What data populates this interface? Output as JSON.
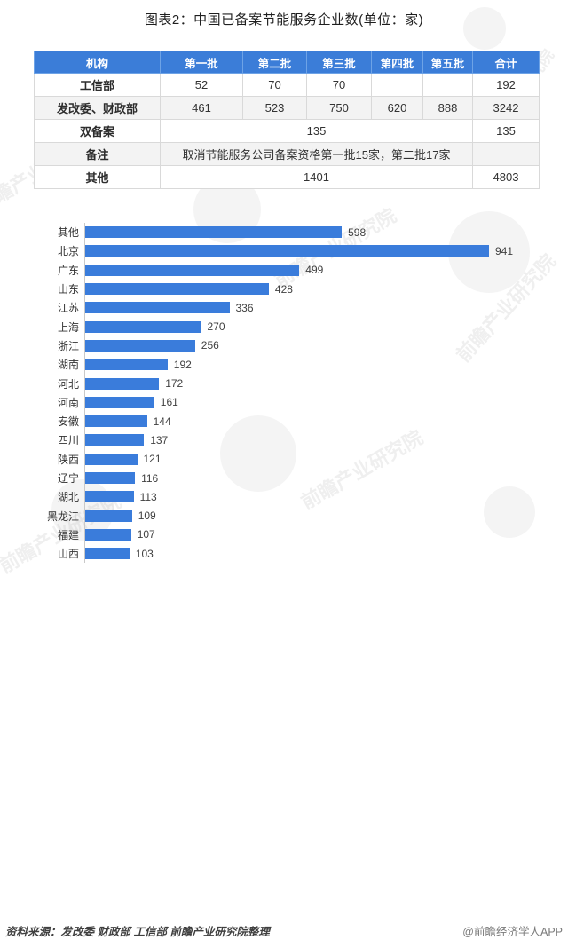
{
  "title": "图表2：中国已备案节能服务企业数(单位：家)",
  "colors": {
    "table_header_blue": "#3b7dd8",
    "bar_blue": "#3a7cdb",
    "axis_gray": "#c9c9c9"
  },
  "chart_data": [
    {
      "type": "table",
      "headers": [
        "机构",
        "第一批",
        "第二批",
        "第三批",
        "第四批",
        "第五批",
        "合计"
      ],
      "rows": [
        {
          "label": "工信部",
          "cells": [
            "52",
            "70",
            "70",
            "",
            ""
          ],
          "total": "192"
        },
        {
          "label": "发改委、财政部",
          "cells": [
            "461",
            "523",
            "750",
            "620",
            "888"
          ],
          "total": "3242"
        },
        {
          "label": "双备案",
          "span_text": "135",
          "total": "135"
        },
        {
          "label": "备注",
          "span_text": "取消节能服务公司备案资格第一批15家，第二批17家",
          "total": ""
        },
        {
          "label": "其他",
          "span_text": "1401",
          "total": "4803"
        }
      ]
    },
    {
      "type": "bar",
      "orientation": "horizontal",
      "title": "图表2：中国已备案节能服务企业数(单位：家)",
      "xlabel": "",
      "ylabel": "",
      "value_labels": true,
      "xlim": [
        0,
        1000
      ],
      "categories": [
        "其他",
        "北京",
        "广东",
        "山东",
        "江苏",
        "上海",
        "浙江",
        "湖南",
        "河北",
        "河南",
        "安徽",
        "四川",
        "陕西",
        "辽宁",
        "湖北",
        "黑龙江",
        "福建",
        "山西"
      ],
      "values": [
        598,
        941,
        499,
        428,
        336,
        270,
        256,
        192,
        172,
        161,
        144,
        137,
        121,
        116,
        113,
        109,
        107,
        103
      ]
    }
  ],
  "footer": {
    "source": "资料来源：发改委 财政部 工信部 前瞻产业研究院整理",
    "credit": "@前瞻经济学人APP"
  },
  "watermark": {
    "text": "前瞻产业研究院"
  }
}
